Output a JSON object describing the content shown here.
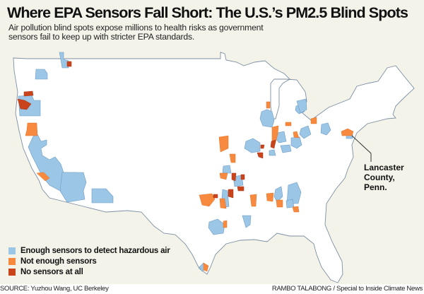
{
  "header": {
    "title": "Where EPA Sensors Fall Short: The U.S.’s PM2.5 Blind Spots",
    "subtitle": "Air pollution blind spots expose millions to health risks as government sensors fail to keep up with stricter EPA standards."
  },
  "legend": [
    {
      "label": "Enough sensors to detect hazardous air",
      "color": "#9cc6e6"
    },
    {
      "label": "Not enough sensors",
      "color": "#f78a3e"
    },
    {
      "label": "No sensors at all",
      "color": "#c9441a"
    }
  ],
  "annotation": {
    "line1": "Lancaster",
    "line2": "County,",
    "line3": "Penn."
  },
  "footer": {
    "source": "SOURCE: Yuzhou Wang, UC Berkeley",
    "credit": "RAMBO TALABONG / Special to Inside Climate News"
  }
}
